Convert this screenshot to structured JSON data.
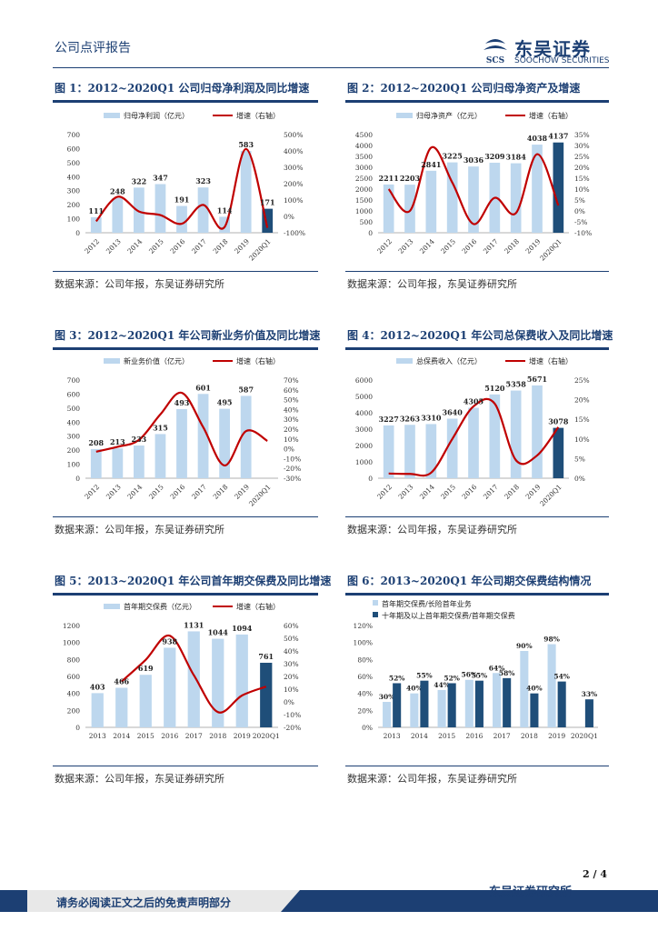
{
  "header": {
    "report_type": "公司点评报告",
    "logo_cn": "东吴证券",
    "logo_en": "SOOCHOW SECURITIES",
    "logo_mark": "SCS"
  },
  "footer": {
    "disclaimer": "请务必阅读正文之后的免责声明部分",
    "institute": "东吴证券研究所",
    "page": "2 / 4"
  },
  "colors": {
    "bar": "#bdd7ee",
    "bar_dark": "#1f4e79",
    "line": "#c00000",
    "accent": "#1c3f73"
  },
  "charts": [
    {
      "title": "图 1：2012~2020Q1 公司归母净利润及同比增速",
      "source": "数据来源：公司年报，东吴证券研究所",
      "chart_data": {
        "type": "bar",
        "legend": [
          "归母净利润（亿元）",
          "增速（右轴）"
        ],
        "categories": [
          "2012",
          "2013",
          "2014",
          "2015",
          "2016",
          "2017",
          "2018",
          "2019",
          "2020Q1"
        ],
        "values": [
          111,
          248,
          322,
          347,
          191,
          323,
          114,
          583,
          171
        ],
        "labels": [
          "111",
          "248",
          "322",
          "347",
          "191",
          "323",
          "114",
          "583",
          "171"
        ],
        "highlight_last": true,
        "growth": [
          -30,
          120,
          30,
          8,
          -45,
          70,
          -65,
          412,
          -70
        ],
        "ylim": [
          0,
          700
        ],
        "yticks": [
          "0",
          "100",
          "200",
          "300",
          "400",
          "500",
          "600",
          "700"
        ],
        "y2lim": [
          -100,
          500
        ],
        "y2ticks": [
          "-100%",
          "0%",
          "100%",
          "200%",
          "300%",
          "400%",
          "500%"
        ]
      }
    },
    {
      "title": "图 2：2012~2020Q1 公司归母净资产及增速",
      "source": "数据来源：公司年报，东吴证券研究所",
      "chart_data": {
        "type": "bar",
        "legend": [
          "归母净资产（亿元）",
          "增速（右轴）"
        ],
        "categories": [
          "2012",
          "2013",
          "2014",
          "2015",
          "2016",
          "2017",
          "2018",
          "2019",
          "2020Q1"
        ],
        "values": [
          2211,
          2203,
          2841,
          3225,
          3036,
          3209,
          3184,
          4038,
          4137
        ],
        "labels": [
          "2211",
          "2203",
          "2841",
          "3225",
          "3036",
          "3209",
          "3184",
          "4038",
          "4137"
        ],
        "highlight_last": true,
        "growth": [
          10,
          0,
          29,
          13,
          -6,
          6,
          -1,
          26,
          2.5
        ],
        "ylim": [
          0,
          4500
        ],
        "yticks": [
          "0",
          "500",
          "1000",
          "1500",
          "2000",
          "2500",
          "3000",
          "3500",
          "4000",
          "4500"
        ],
        "y2lim": [
          -10,
          35
        ],
        "y2ticks": [
          "-10%",
          "-5%",
          "0%",
          "5%",
          "10%",
          "15%",
          "20%",
          "25%",
          "30%",
          "35%"
        ]
      }
    },
    {
      "title": "图 3：2012~2020Q1 年公司新业务价值及同比增速",
      "source": "数据来源：公司年报，东吴证券研究所",
      "chart_data": {
        "type": "bar",
        "legend": [
          "新业务价值（亿元）",
          "增速（右轴）"
        ],
        "categories": [
          "2012",
          "2013",
          "2014",
          "2015",
          "2016",
          "2017",
          "2018",
          "2019",
          "2020Q1"
        ],
        "values": [
          208,
          213,
          233,
          315,
          493,
          601,
          495,
          587,
          null
        ],
        "labels": [
          "208",
          "213",
          "233",
          "315",
          "493",
          "601",
          "495",
          "587",
          ""
        ],
        "highlight_last": false,
        "growth": [
          -3,
          2,
          9,
          35,
          57,
          22,
          -17,
          18,
          8
        ],
        "ylim": [
          0,
          700
        ],
        "yticks": [
          "0",
          "100",
          "200",
          "300",
          "400",
          "500",
          "600",
          "700"
        ],
        "y2lim": [
          -30,
          70
        ],
        "y2ticks": [
          "-30%",
          "-20%",
          "-10%",
          "0%",
          "10%",
          "20%",
          "30%",
          "40%",
          "50%",
          "60%",
          "70%"
        ]
      }
    },
    {
      "title": "图 4：2012~2020Q1 年公司总保费收入及同比增速",
      "source": "数据来源：公司年报，东吴证券研究所",
      "chart_data": {
        "type": "bar",
        "legend": [
          "总保费收入（亿元）",
          "增速（右轴）"
        ],
        "categories": [
          "2012",
          "2013",
          "2014",
          "2015",
          "2016",
          "2017",
          "2018",
          "2019",
          "2020Q1"
        ],
        "values": [
          3227,
          3263,
          3310,
          3640,
          4305,
          5120,
          5358,
          5671,
          3078
        ],
        "labels": [
          "3227",
          "3263",
          "3310",
          "3640",
          "4305",
          "5120",
          "5358",
          "5671",
          "3078"
        ],
        "highlight_last": true,
        "growth": [
          1.2,
          1.1,
          1.4,
          10,
          18.3,
          19,
          4.6,
          5.8,
          13
        ],
        "ylim": [
          0,
          6000
        ],
        "yticks": [
          "0",
          "1000",
          "2000",
          "3000",
          "4000",
          "5000",
          "6000"
        ],
        "y2lim": [
          0,
          25
        ],
        "y2ticks": [
          "0%",
          "5%",
          "10%",
          "15%",
          "20%",
          "25%"
        ]
      }
    },
    {
      "title": "图 5：2013~2020Q1 年公司首年期交保费及同比增速",
      "source": "数据来源：公司年报，东吴证券研究所",
      "chart_data": {
        "type": "bar",
        "legend": [
          "首年期交保费（亿元）",
          "增速（右轴）"
        ],
        "categories": [
          "2013",
          "2014",
          "2015",
          "2016",
          "2017",
          "2018",
          "2019",
          "2020Q1"
        ],
        "values": [
          403,
          466,
          619,
          938,
          1131,
          1044,
          1094,
          761
        ],
        "labels": [
          "403",
          "466",
          "619",
          "938",
          "1131",
          "1044",
          "1094",
          "761"
        ],
        "highlight_last": true,
        "growth": [
          null,
          16,
          33,
          52,
          21,
          -8,
          5,
          12
        ],
        "ylim": [
          0,
          1200
        ],
        "yticks": [
          "0",
          "200",
          "400",
          "600",
          "800",
          "1000",
          "1200"
        ],
        "y2lim": [
          -20,
          60
        ],
        "y2ticks": [
          "-20%",
          "-10%",
          "0%",
          "10%",
          "20%",
          "30%",
          "40%",
          "50%",
          "60%"
        ]
      }
    },
    {
      "title": "图 6：2013~2020Q1 年公司期交保费结构情况",
      "source": "数据来源：公司年报，东吴证券研究所",
      "chart_data": {
        "type": "grouped_bar",
        "legend": [
          "首年期交保费/长险首年业务",
          "十年期及以上首年期交保费/首年期交保费"
        ],
        "categories": [
          "2013",
          "2014",
          "2015",
          "2016",
          "2017",
          "2018",
          "2019",
          "2020Q1"
        ],
        "series": [
          {
            "name": "首年期交保费/长险首年业务",
            "values": [
              30,
              40,
              44,
              56,
              64,
              90,
              98,
              null
            ],
            "labels": [
              "30%",
              "40%",
              "44%",
              "56%",
              "64%",
              "90%",
              "98%",
              ""
            ]
          },
          {
            "name": "十年期及以上首年期交保费/首年期交保费",
            "values": [
              52,
              55,
              52,
              55,
              58,
              40,
              54,
              33
            ],
            "labels": [
              "52%",
              "55%",
              "52%",
              "55%",
              "58%",
              "40%",
              "54%",
              "33%"
            ]
          }
        ],
        "ylim": [
          0,
          120
        ],
        "yticks": [
          "0%",
          "20%",
          "40%",
          "60%",
          "80%",
          "100%",
          "120%"
        ]
      }
    }
  ]
}
